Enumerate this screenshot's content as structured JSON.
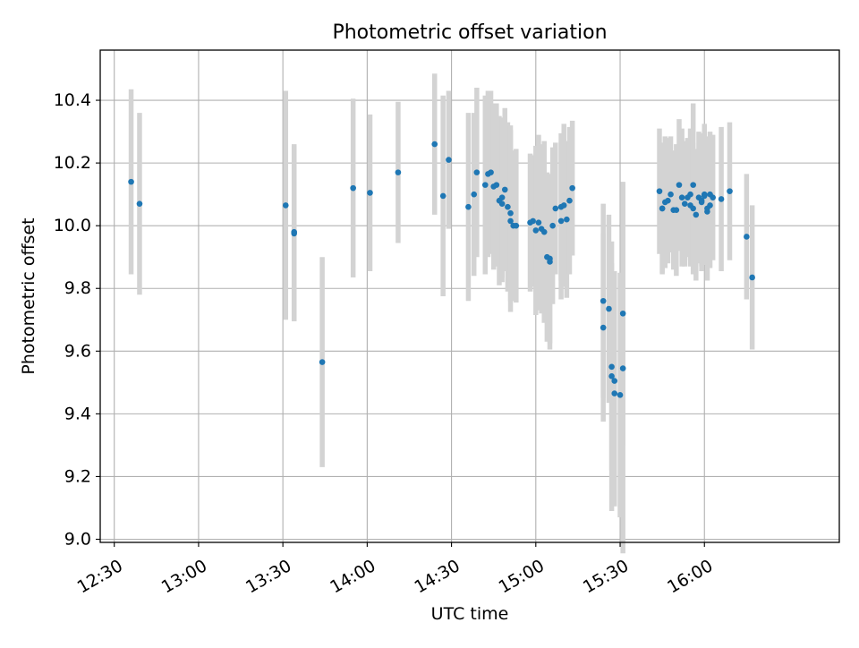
{
  "chart_data": {
    "type": "scatter",
    "title": "Photometric offset variation",
    "xlabel": "UTC time",
    "ylabel": "Photometric offset",
    "x_unit": "UTC HH:MM",
    "xlim": [
      "12:25",
      "16:48"
    ],
    "ylim": [
      8.99,
      10.56
    ],
    "x_ticks": [
      "12:30",
      "13:00",
      "13:30",
      "14:00",
      "14:30",
      "15:00",
      "15:30",
      "16:00"
    ],
    "y_ticks": [
      "9.0",
      "9.2",
      "9.4",
      "9.6",
      "9.8",
      "10.0",
      "10.2",
      "10.4"
    ],
    "grid": true,
    "marker_color": "#1f77b4",
    "errorbar_color": "#d3d3d3",
    "series": [
      {
        "x": [
          "12:36",
          "12:39",
          "13:31",
          "13:34",
          "13:34",
          "13:44",
          "13:55",
          "14:01",
          "14:11",
          "14:24",
          "14:27",
          "14:29",
          "14:36",
          "14:38",
          "14:39",
          "14:42",
          "14:43",
          "14:44",
          "14:45",
          "14:46",
          "14:47",
          "14:48",
          "14:48",
          "14:49",
          "14:50",
          "14:51",
          "14:51",
          "14:52",
          "14:53",
          "14:58",
          "14:59",
          "15:00",
          "15:01",
          "15:02",
          "15:03",
          "15:04",
          "15:05",
          "15:05",
          "15:06",
          "15:07",
          "15:09",
          "15:09",
          "15:10",
          "15:11",
          "15:12",
          "15:13",
          "15:24",
          "15:24",
          "15:26",
          "15:27",
          "15:27",
          "15:28",
          "15:28",
          "15:30",
          "15:31",
          "15:31",
          "15:44",
          "15:45",
          "15:45",
          "15:46",
          "15:47",
          "15:48",
          "15:49",
          "15:50",
          "15:51",
          "15:52",
          "15:53",
          "15:54",
          "15:55",
          "15:55",
          "15:56",
          "15:56",
          "15:57",
          "15:58",
          "15:59",
          "15:59",
          "16:00",
          "16:00",
          "16:01",
          "16:01",
          "16:02",
          "16:02",
          "16:03",
          "16:06",
          "16:09",
          "16:15",
          "16:17"
        ],
        "y": [
          10.14,
          10.07,
          10.065,
          9.975,
          9.98,
          9.565,
          10.12,
          10.105,
          10.17,
          10.26,
          10.095,
          10.21,
          10.06,
          10.1,
          10.17,
          10.13,
          10.165,
          10.17,
          10.125,
          10.13,
          10.08,
          10.07,
          10.09,
          10.115,
          10.06,
          10.04,
          10.015,
          10.0,
          10.0,
          10.01,
          10.015,
          9.985,
          10.01,
          9.99,
          9.98,
          9.9,
          9.885,
          9.895,
          10.0,
          10.055,
          10.06,
          10.015,
          10.065,
          10.02,
          10.08,
          10.12,
          9.76,
          9.675,
          9.735,
          9.55,
          9.52,
          9.465,
          9.505,
          9.46,
          9.545,
          9.72,
          10.11,
          10.055,
          10.055,
          10.075,
          10.08,
          10.1,
          10.05,
          10.05,
          10.13,
          10.09,
          10.07,
          10.09,
          10.065,
          10.1,
          10.13,
          10.055,
          10.035,
          10.09,
          10.08,
          10.075,
          10.095,
          10.1,
          10.055,
          10.045,
          10.1,
          10.065,
          10.09,
          10.085,
          10.11,
          9.965,
          9.835
        ],
        "yerr": [
          0.295,
          0.29,
          0.365,
          0.28,
          0.28,
          0.335,
          0.285,
          0.25,
          0.225,
          0.225,
          0.32,
          0.22,
          0.3,
          0.26,
          0.27,
          0.285,
          0.265,
          0.26,
          0.265,
          0.26,
          0.27,
          0.25,
          0.255,
          0.26,
          0.27,
          0.28,
          0.29,
          0.24,
          0.245,
          0.22,
          0.21,
          0.27,
          0.28,
          0.27,
          0.29,
          0.27,
          0.28,
          0.27,
          0.25,
          0.21,
          0.235,
          0.25,
          0.26,
          0.25,
          0.235,
          0.215,
          0.31,
          0.3,
          0.3,
          0.33,
          0.43,
          0.36,
          0.35,
          0.39,
          0.59,
          0.42,
          0.2,
          0.205,
          0.21,
          0.21,
          0.2,
          0.185,
          0.19,
          0.21,
          0.21,
          0.22,
          0.2,
          0.19,
          0.195,
          0.21,
          0.26,
          0.21,
          0.21,
          0.21,
          0.21,
          0.22,
          0.2,
          0.225,
          0.23,
          0.22,
          0.2,
          0.2,
          0.2,
          0.23,
          0.22,
          0.2,
          0.23
        ]
      }
    ]
  }
}
